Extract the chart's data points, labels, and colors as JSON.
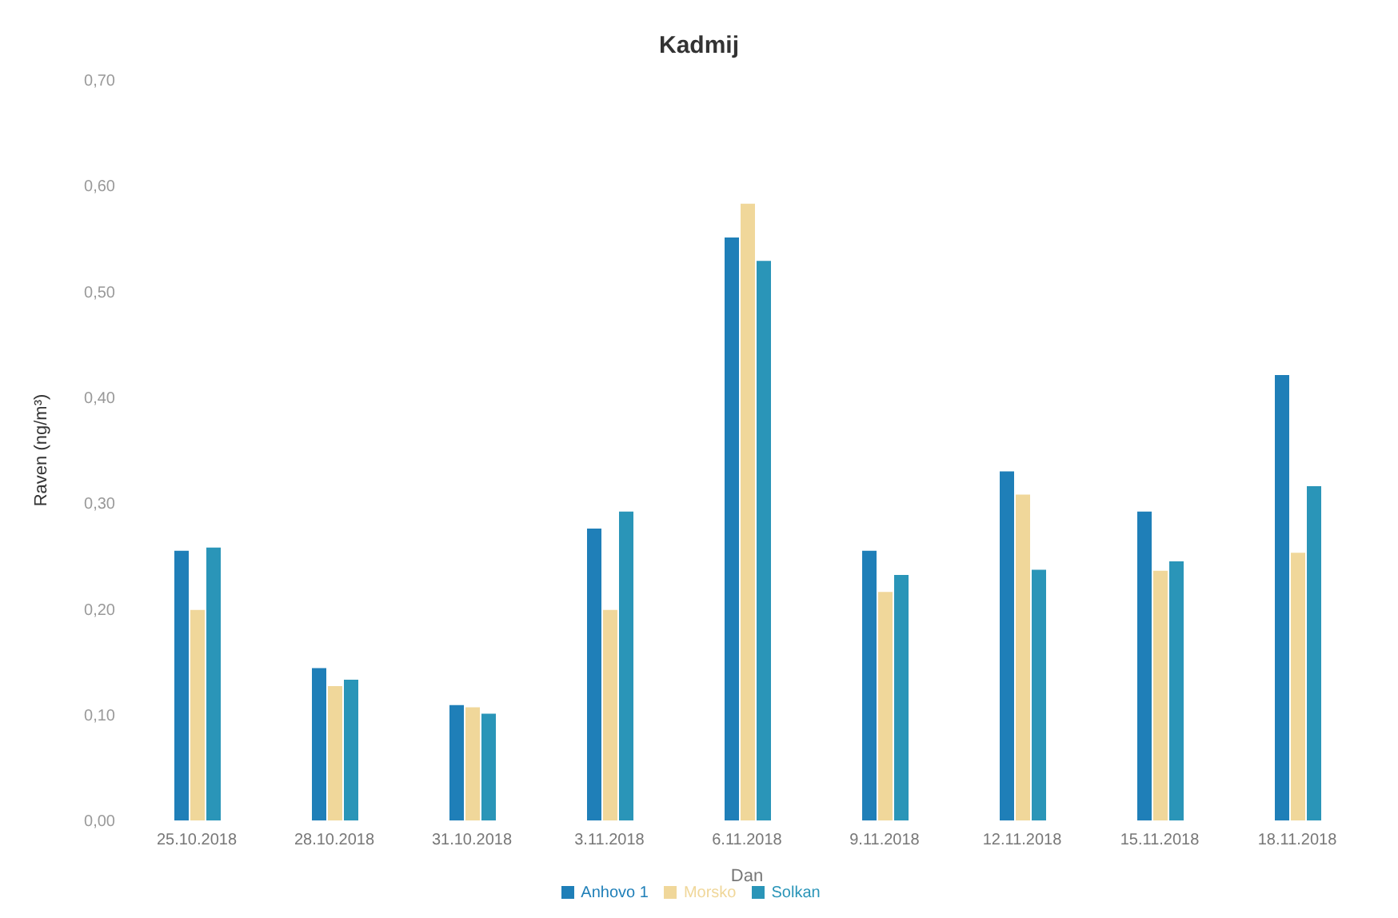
{
  "chart_data": {
    "type": "bar",
    "title": "Kadmij",
    "xlabel": "Dan",
    "ylabel": "Raven (ng/m³)",
    "categories": [
      "25.10.2018",
      "28.10.2018",
      "31.10.2018",
      "3.11.2018",
      "6.11.2018",
      "9.11.2018",
      "12.11.2018",
      "15.11.2018",
      "18.11.2018"
    ],
    "series": [
      {
        "name": "Anhovo 1",
        "color": "#1f7fb8",
        "values": [
          0.255,
          0.144,
          0.109,
          0.276,
          0.551,
          0.255,
          0.33,
          0.292,
          0.421
        ]
      },
      {
        "name": "Morsko",
        "color": "#f0d79a",
        "values": [
          0.199,
          0.127,
          0.107,
          0.199,
          0.583,
          0.216,
          0.308,
          0.236,
          0.253
        ]
      },
      {
        "name": "Solkan",
        "color": "#2a95b8",
        "values": [
          0.258,
          0.133,
          0.101,
          0.292,
          0.529,
          0.232,
          0.237,
          0.245,
          0.316
        ]
      }
    ],
    "ylim": [
      0,
      0.7
    ],
    "yticks": [
      {
        "value": 0,
        "label": "0,00"
      },
      {
        "value": 0.1,
        "label": "0,10"
      },
      {
        "value": 0.2,
        "label": "0,20"
      },
      {
        "value": 0.3,
        "label": "0,30"
      },
      {
        "value": 0.4,
        "label": "0,40"
      },
      {
        "value": 0.5,
        "label": "0,50"
      },
      {
        "value": 0.6,
        "label": "0,60"
      },
      {
        "value": 0.7,
        "label": "0,70"
      }
    ],
    "legend": "bottom"
  }
}
